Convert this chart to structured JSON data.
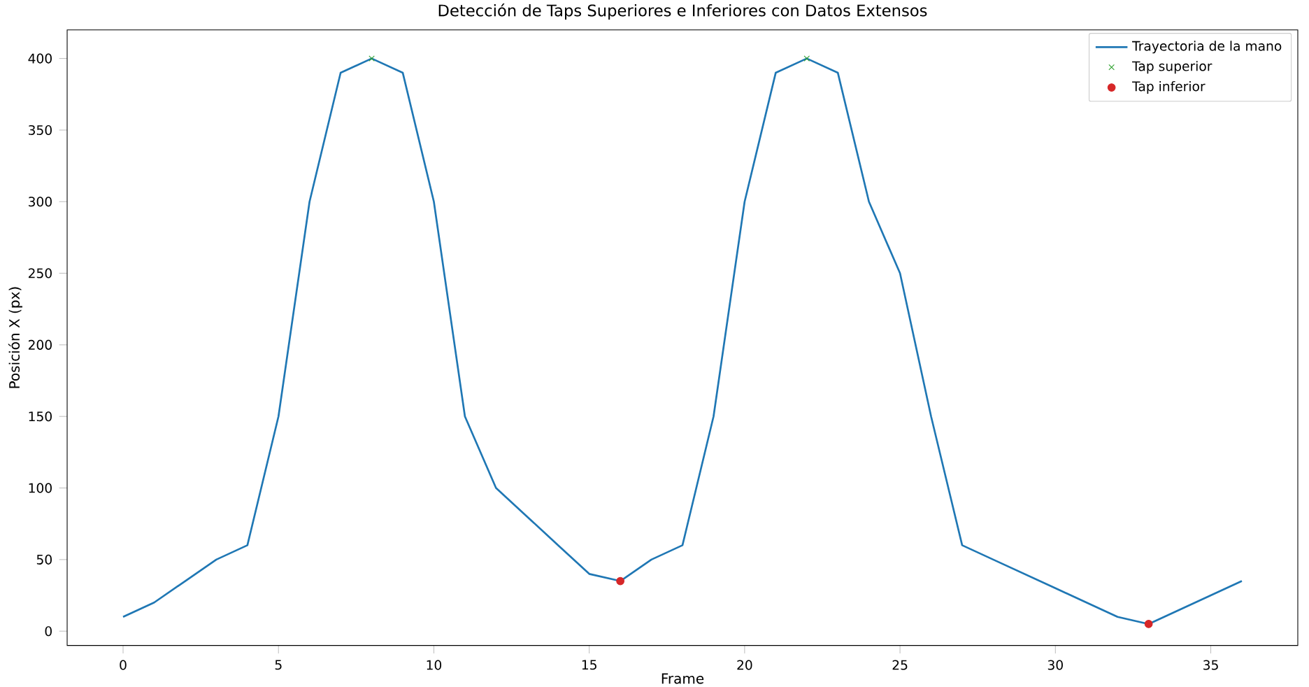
{
  "chart_data": {
    "type": "line",
    "title": "Detección de Taps Superiores e Inferiores con Datos Extensos",
    "xlabel": "Frame",
    "ylabel": "Posición X (px)",
    "series": [
      {
        "name": "Trayectoria de la mano",
        "color": "#1f77b4",
        "x": [
          0,
          1,
          2,
          3,
          4,
          5,
          6,
          7,
          8,
          9,
          10,
          11,
          12,
          13,
          14,
          15,
          16,
          17,
          18,
          19,
          20,
          21,
          22,
          23,
          24,
          25,
          26,
          27,
          28,
          29,
          30,
          31,
          32,
          33,
          34,
          35,
          36
        ],
        "values": [
          10,
          20,
          35,
          50,
          60,
          150,
          300,
          390,
          400,
          390,
          300,
          150,
          100,
          80,
          60,
          40,
          35,
          50,
          60,
          150,
          300,
          390,
          400,
          390,
          300,
          250,
          150,
          60,
          50,
          40,
          30,
          20,
          10,
          5,
          15,
          25,
          35
        ]
      },
      {
        "name": "Tap superior",
        "type": "scatter",
        "marker": "cross",
        "color": "#2ca02c",
        "x": [
          8,
          22
        ],
        "values": [
          400,
          400
        ]
      },
      {
        "name": "Tap inferior",
        "type": "scatter",
        "marker": "circle",
        "color": "#d62728",
        "x": [
          16,
          33
        ],
        "values": [
          35,
          5
        ]
      }
    ],
    "xlim": [
      -1.8,
      37.8
    ],
    "ylim": [
      -10,
      420
    ],
    "xticks": [
      0,
      5,
      10,
      15,
      20,
      25,
      30,
      35
    ],
    "yticks": [
      0,
      50,
      100,
      150,
      200,
      250,
      300,
      350,
      400
    ],
    "grid": false,
    "legend": "top right"
  }
}
